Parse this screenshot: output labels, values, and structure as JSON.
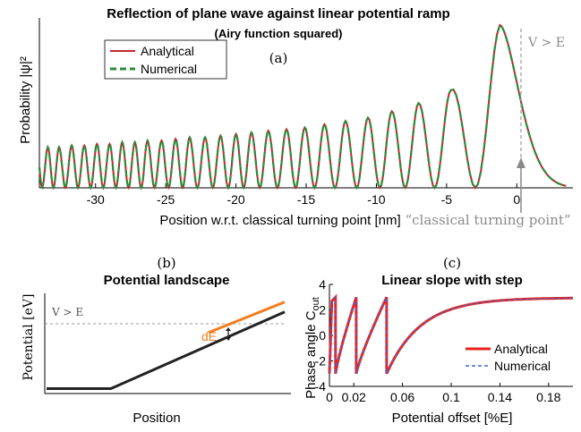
{
  "colors": {
    "analytical_a": "#c0272d",
    "numerical_a": "#2e8b3a",
    "analytical_c": "#e8231e",
    "numerical_c": "#4a66c8",
    "potential": "#222222",
    "step": "#f07f1e",
    "annotation": "#8a8a8a"
  },
  "chart_data": [
    {
      "id": "a",
      "type": "line",
      "panel_label": "(a)",
      "title": "Reflection of plane wave against linear potential ramp",
      "subtitle": "(Airy function squared)",
      "xlabel": "Position w.r.t. classical turning point [nm]",
      "ylabel": "Probability |ψ|²",
      "xlim": [
        -34,
        4
      ],
      "x_ticks": [
        "-30",
        "-25",
        "-20",
        "-15",
        "-10",
        "-5",
        "0"
      ],
      "x_tick_values": [
        -30,
        -25,
        -20,
        -15,
        -10,
        -5,
        0
      ],
      "peaks_x": [
        -33.4,
        -32.6,
        -31.7,
        -30.8,
        -29.9,
        -29.0,
        -28.1,
        -27.2,
        -26.3,
        -25.3,
        -24.3,
        -23.3,
        -22.2,
        -21.1,
        -20.0,
        -18.9,
        -17.7,
        -16.4,
        -15.1,
        -13.7,
        -12.2,
        -10.6,
        -8.9,
        -7.0,
        -4.7,
        -1.2
      ],
      "peaks_y": [
        0.25,
        0.25,
        0.26,
        0.26,
        0.27,
        0.27,
        0.28,
        0.28,
        0.29,
        0.29,
        0.3,
        0.31,
        0.31,
        0.32,
        0.33,
        0.34,
        0.35,
        0.36,
        0.37,
        0.39,
        0.41,
        0.43,
        0.47,
        0.52,
        0.6,
        1.0
      ],
      "decay_end_x": 3.5,
      "series": [
        {
          "name": "Analytical",
          "style": "solid"
        },
        {
          "name": "Numerical",
          "style": "dashed"
        }
      ],
      "legend": "top-left",
      "annotations": {
        "region": "V > E",
        "turning_point": "“classical turning point”",
        "turning_point_x": 0.3
      }
    },
    {
      "id": "b",
      "type": "line",
      "panel_label": "(b)",
      "title": "Potential landscape",
      "xlabel": "Position",
      "ylabel": "Potential [eV]",
      "annotations": {
        "region": "V > E",
        "step": "dE"
      },
      "series": [
        {
          "points_x": [
            0,
            0.27,
            1.0
          ],
          "points_y": [
            0.05,
            0.05,
            0.83
          ]
        },
        {
          "points_x": [
            0.68,
            1.0
          ],
          "points_y": [
            0.62,
            0.93
          ]
        }
      ],
      "energy_level": 0.64
    },
    {
      "id": "c",
      "type": "line",
      "panel_label": "(c)",
      "title": "Linear slope with step",
      "xlabel": "Potential offset [%E]",
      "ylabel": "Phase angle C",
      "ylabel_sub": "out",
      "xlim": [
        0,
        0.2
      ],
      "ylim": [
        -4,
        4
      ],
      "x_ticks": [
        "0",
        "0.02",
        "0.06",
        "0.1",
        "0.14",
        "0.18"
      ],
      "x_tick_values": [
        0,
        0.02,
        0.06,
        0.1,
        0.14,
        0.18
      ],
      "y_ticks": [
        "-4",
        "-2",
        "0",
        "2",
        "4"
      ],
      "y_tick_values": [
        -4,
        -2,
        0,
        2,
        4
      ],
      "jumps_x": [
        0.005,
        0.022,
        0.047
      ],
      "series": [
        {
          "name": "Analytical",
          "style": "solid"
        },
        {
          "name": "Numerical",
          "style": "dashed"
        }
      ],
      "legend": "bottom-right"
    }
  ]
}
